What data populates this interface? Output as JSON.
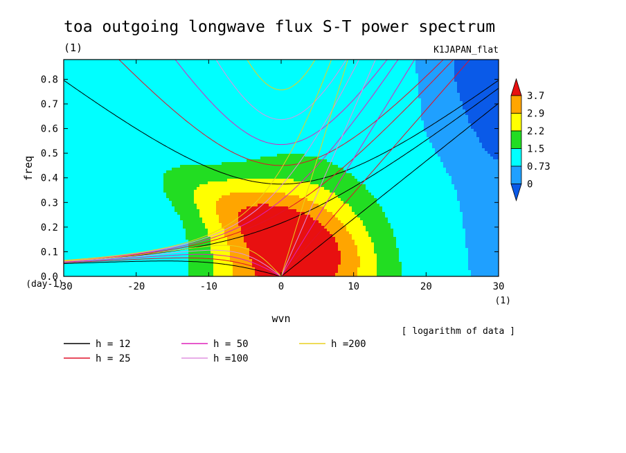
{
  "chart_data": {
    "type": "heatmap",
    "title": "toa outgoing longwave flux S-T power spectrum",
    "subtitle_left": "(1)",
    "subtitle_right": "K1JAPAN_flat",
    "xlabel": "wvn",
    "ylabel": "freq",
    "x_unit": "(1)",
    "y_unit": "(day-1)",
    "xlim": [
      -30,
      30
    ],
    "ylim": [
      0,
      0.88
    ],
    "x_ticks": [
      -30,
      -20,
      -10,
      0,
      10,
      20,
      30
    ],
    "y_ticks": [
      0.0,
      0.1,
      0.2,
      0.3,
      0.4,
      0.5,
      0.6,
      0.7,
      0.8
    ],
    "x_tick_labels": [
      "-30",
      "-20",
      "-10",
      "0",
      "10",
      "20",
      "30"
    ],
    "y_tick_labels": [
      "0.0",
      "0.1",
      "0.2",
      "0.3",
      "0.4",
      "0.5",
      "0.6",
      "0.7",
      "0.8"
    ],
    "colorbar": {
      "levels": [
        "3.7",
        "2.9",
        "2.2",
        "1.5",
        "0.73",
        "0"
      ],
      "colors": [
        "#e81010",
        "#ffa500",
        "#ffff00",
        "#22dd22",
        "#00ffff",
        "#1fa0ff",
        "#0a5ae8"
      ],
      "note": "[ logarithm of data ]"
    },
    "contour_fill_colors": [
      "#0a5ae8",
      "#1fa0ff",
      "#00ffff",
      "#22dd22",
      "#ffff00",
      "#ffa500",
      "#e81010"
    ],
    "field_model": {
      "base": 0.78,
      "peak_amp": 3.5,
      "peak_x": 1.5,
      "peak_y": 0.04,
      "peak_sx": 11.5,
      "peak_sy": 0.36,
      "ridge_amp": 1.3,
      "ridge_slope": -0.012,
      "ridge_sx": 13,
      "ridge_sy": 0.13,
      "high_amp": 0.25,
      "high_x": 0,
      "high_y": 0.8,
      "high_sx": 20,
      "high_sy": 0.18,
      "corner_amp": -1.55,
      "corner_x": 30,
      "corner_y": 0.88,
      "corner_sx": 7.5,
      "corner_sy": 0.3,
      "edge_amp": -0.65,
      "edge_x": 30,
      "edge_sx": 4,
      "thresholds": [
        -99,
        0,
        0.73,
        1.5,
        2.2,
        2.9,
        3.7
      ]
    },
    "dispersion_curves": [
      {
        "h": 12,
        "color": "#000000"
      },
      {
        "h": 25,
        "color": "#e0102a"
      },
      {
        "h": 50,
        "color": "#dd22bb"
      },
      {
        "h": 100,
        "color": "#e090e0"
      },
      {
        "h": 200,
        "color": "#e8d020"
      }
    ],
    "legend": {
      "placement": "bottom",
      "entries": [
        {
          "label": "h = 12",
          "color": "#000000"
        },
        {
          "label": "h = 50",
          "color": "#dd22bb"
        },
        {
          "label": "h =200",
          "color": "#e8d020"
        },
        {
          "label": "h = 25",
          "color": "#e0102a"
        },
        {
          "label": "h =100",
          "color": "#e090e0"
        }
      ]
    }
  }
}
